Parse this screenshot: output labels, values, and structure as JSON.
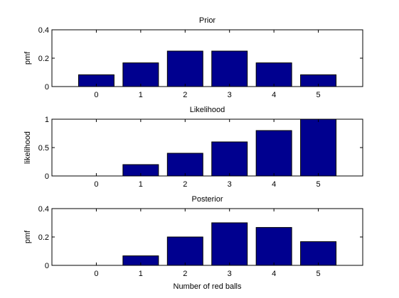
{
  "colors": {
    "bar": "#00008f",
    "axis": "#000000",
    "background": "#ffffff"
  },
  "xlabel": "Number of red balls",
  "chart_data": [
    {
      "type": "bar",
      "title": "Prior",
      "xlabel": "",
      "ylabel": "pmf",
      "categories": [
        "0",
        "1",
        "2",
        "3",
        "4",
        "5"
      ],
      "values": [
        0.083,
        0.167,
        0.25,
        0.25,
        0.167,
        0.083
      ],
      "ylim": [
        0,
        0.4
      ],
      "yticks": [
        0,
        0.2,
        0.4
      ],
      "ytick_labels": [
        "0",
        "0.2",
        "0.4"
      ],
      "xlim": [
        -1,
        6
      ]
    },
    {
      "type": "bar",
      "title": "Likelihood",
      "xlabel": "",
      "ylabel": "likelihood",
      "categories": [
        "0",
        "1",
        "2",
        "3",
        "4",
        "5"
      ],
      "values": [
        0,
        0.2,
        0.4,
        0.6,
        0.8,
        1.0
      ],
      "ylim": [
        0,
        1
      ],
      "yticks": [
        0,
        0.5,
        1
      ],
      "ytick_labels": [
        "0",
        "0.5",
        "1"
      ],
      "xlim": [
        -1,
        6
      ]
    },
    {
      "type": "bar",
      "title": "Posterior",
      "xlabel": "Number of red balls",
      "ylabel": "pmf",
      "categories": [
        "0",
        "1",
        "2",
        "3",
        "4",
        "5"
      ],
      "values": [
        0,
        0.067,
        0.2,
        0.3,
        0.267,
        0.167
      ],
      "ylim": [
        0,
        0.4
      ],
      "yticks": [
        0,
        0.2,
        0.4
      ],
      "ytick_labels": [
        "0",
        "0.2",
        "0.4"
      ],
      "xlim": [
        -1,
        6
      ]
    }
  ]
}
